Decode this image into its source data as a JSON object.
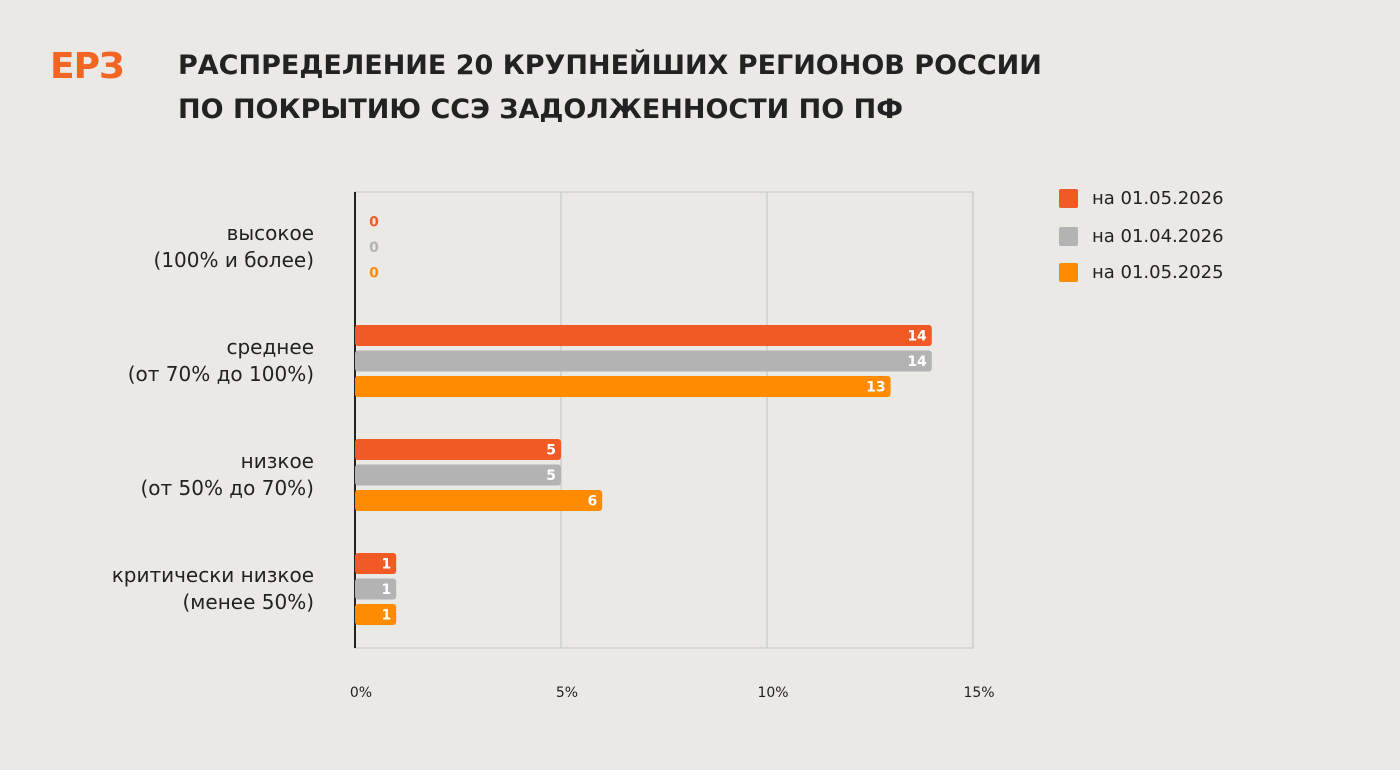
{
  "logo": "ЕРЗ",
  "chart_data": {
    "type": "hbar",
    "title": "РАСПРЕДЕЛЕНИЕ 20 КРУПНЕЙШИХ РЕГИОНОВ РОССИИ\nПО ПОКРЫТИЮ ССЭ ЗАДОЛЖЕННОСТИ ПО ПФ",
    "categories": [
      "высокое\n(100% и более)",
      "среднее\n(от 70% до 100%)",
      "низкое\n(от 50% до 70%)",
      "критически низкое\n(менее 50%)"
    ],
    "series": [
      {
        "name": "на 01.05.2026",
        "color": "#f15a24",
        "values": [
          0,
          14,
          5,
          1
        ]
      },
      {
        "name": "на 01.04.2026",
        "color": "#b3b3b3",
        "values": [
          0,
          14,
          5,
          1
        ]
      },
      {
        "name": "на 01.05.2025",
        "color": "#ff8c00",
        "values": [
          0,
          13,
          6,
          1
        ]
      }
    ],
    "xlim": [
      0,
      15
    ],
    "xticks": [
      {
        "value": 0,
        "label": "0%"
      },
      {
        "value": 5,
        "label": "5%"
      },
      {
        "value": 10,
        "label": "10%"
      },
      {
        "value": 15,
        "label": "15%"
      }
    ],
    "grid": true,
    "legend": "right"
  }
}
